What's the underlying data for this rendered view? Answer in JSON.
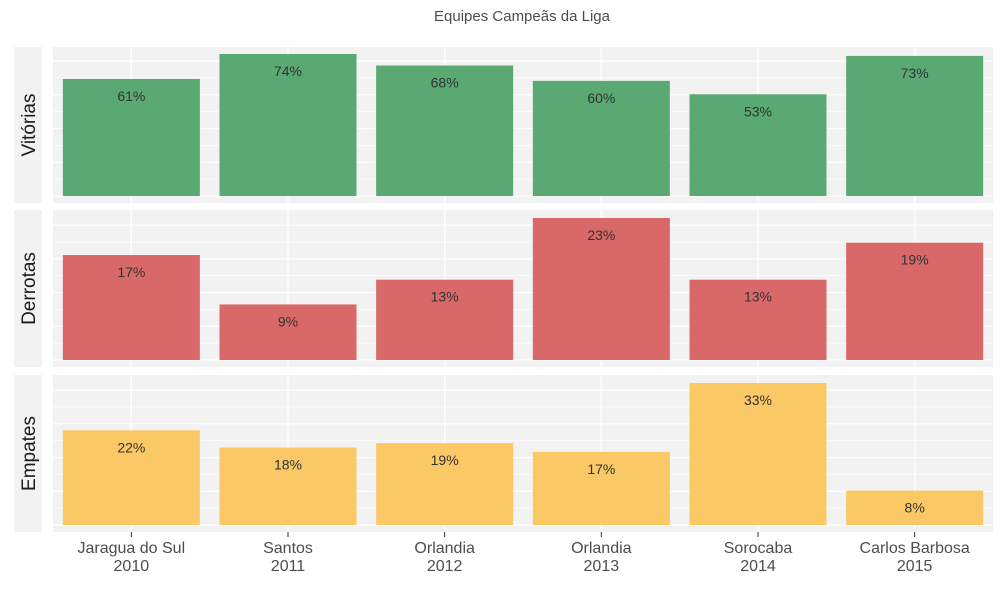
{
  "chart_data": {
    "type": "bar",
    "title": "Equipes Campeãs da Liga",
    "categories": [
      {
        "team": "Jaragua do Sul",
        "year": "2010"
      },
      {
        "team": "Santos",
        "year": "2011"
      },
      {
        "team": "Orlandia",
        "year": "2012"
      },
      {
        "team": "Orlandia",
        "year": "2013"
      },
      {
        "team": "Sorocaba",
        "year": "2014"
      },
      {
        "team": "Carlos Barbosa",
        "year": "2015"
      }
    ],
    "series": [
      {
        "name": "Vitórias",
        "color": "#5aa872",
        "values": [
          61,
          74,
          68,
          60,
          53,
          73
        ],
        "labels": [
          "61%",
          "74%",
          "68%",
          "60%",
          "53%",
          "73%"
        ],
        "ylim": [
          0,
          74
        ]
      },
      {
        "name": "Derrotas",
        "color": "#d96868",
        "values": [
          17,
          9,
          13,
          23,
          13,
          19
        ],
        "labels": [
          "17%",
          "9%",
          "13%",
          "23%",
          "13%",
          "19%"
        ],
        "ylim": [
          0,
          23
        ]
      },
      {
        "name": "Empates",
        "color": "#fac865",
        "values": [
          22,
          18,
          19,
          17,
          33,
          8
        ],
        "labels": [
          "22%",
          "18%",
          "19%",
          "17%",
          "33%",
          "8%"
        ],
        "ylim": [
          0,
          33
        ]
      }
    ],
    "facet": "rows",
    "grid": true
  }
}
